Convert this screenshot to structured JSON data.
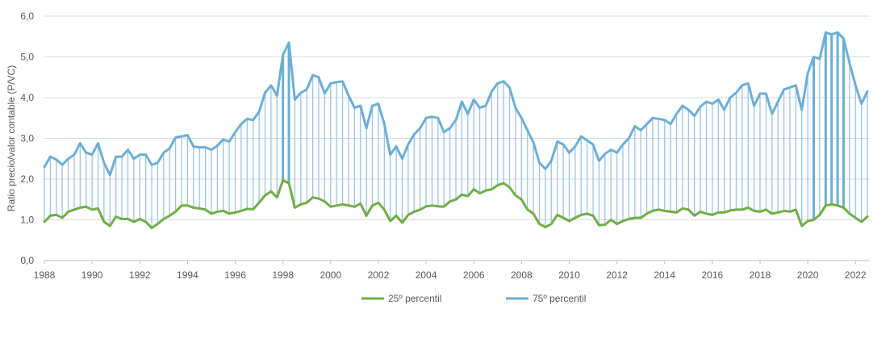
{
  "chart_data": {
    "type": "line",
    "title": "",
    "xlabel": "",
    "ylabel": "Ratio precio/valor contable (P/VC)",
    "xlim": [
      1988,
      2022.6
    ],
    "ylim": [
      0,
      6
    ],
    "y_ticks": [
      "0,0",
      "1,0",
      "2,0",
      "3,0",
      "4,0",
      "5,0",
      "6,0"
    ],
    "x_ticks": [
      "1988",
      "1990",
      "1992",
      "1994",
      "1996",
      "1998",
      "2000",
      "2002",
      "2004",
      "2006",
      "2008",
      "2010",
      "2012",
      "2014",
      "2016",
      "2018",
      "2020",
      "2022"
    ],
    "grid": true,
    "legend_position": "bottom",
    "range_bars": "vertical lines linking both series at each observation",
    "colors": {
      "p25": "#70ad47",
      "p75": "#6baed6",
      "bars": "#9dc3e6",
      "grid": "#d9d9d9",
      "axis": "#bfbfbf",
      "text": "#595959"
    },
    "series": [
      {
        "name": "25º percentil",
        "key": "p25",
        "points": [
          [
            1988.0,
            0.95
          ],
          [
            1988.25,
            1.1
          ],
          [
            1988.5,
            1.12
          ],
          [
            1988.75,
            1.05
          ],
          [
            1989.0,
            1.2
          ],
          [
            1989.25,
            1.25
          ],
          [
            1989.5,
            1.3
          ],
          [
            1989.75,
            1.32
          ],
          [
            1990.0,
            1.25
          ],
          [
            1990.25,
            1.28
          ],
          [
            1990.5,
            0.95
          ],
          [
            1990.75,
            0.85
          ],
          [
            1991.0,
            1.08
          ],
          [
            1991.25,
            1.02
          ],
          [
            1991.5,
            1.02
          ],
          [
            1991.75,
            0.95
          ],
          [
            1992.0,
            1.02
          ],
          [
            1992.25,
            0.95
          ],
          [
            1992.5,
            0.8
          ],
          [
            1992.75,
            0.9
          ],
          [
            1993.0,
            1.02
          ],
          [
            1993.25,
            1.1
          ],
          [
            1993.5,
            1.2
          ],
          [
            1993.75,
            1.35
          ],
          [
            1994.0,
            1.35
          ],
          [
            1994.25,
            1.3
          ],
          [
            1994.5,
            1.28
          ],
          [
            1994.75,
            1.25
          ],
          [
            1995.0,
            1.15
          ],
          [
            1995.25,
            1.2
          ],
          [
            1995.5,
            1.22
          ],
          [
            1995.75,
            1.15
          ],
          [
            1996.0,
            1.18
          ],
          [
            1996.25,
            1.22
          ],
          [
            1996.5,
            1.27
          ],
          [
            1996.75,
            1.26
          ],
          [
            1997.0,
            1.42
          ],
          [
            1997.25,
            1.6
          ],
          [
            1997.5,
            1.7
          ],
          [
            1997.75,
            1.55
          ],
          [
            1998.0,
            1.97
          ],
          [
            1998.25,
            1.9
          ],
          [
            1998.5,
            1.3
          ],
          [
            1998.75,
            1.38
          ],
          [
            1999.0,
            1.42
          ],
          [
            1999.25,
            1.55
          ],
          [
            1999.5,
            1.52
          ],
          [
            1999.75,
            1.45
          ],
          [
            2000.0,
            1.32
          ],
          [
            2000.25,
            1.35
          ],
          [
            2000.5,
            1.38
          ],
          [
            2000.75,
            1.35
          ],
          [
            2001.0,
            1.32
          ],
          [
            2001.25,
            1.4
          ],
          [
            2001.5,
            1.1
          ],
          [
            2001.75,
            1.35
          ],
          [
            2002.0,
            1.42
          ],
          [
            2002.25,
            1.25
          ],
          [
            2002.5,
            0.97
          ],
          [
            2002.75,
            1.1
          ],
          [
            2003.0,
            0.93
          ],
          [
            2003.25,
            1.12
          ],
          [
            2003.5,
            1.2
          ],
          [
            2003.75,
            1.25
          ],
          [
            2004.0,
            1.33
          ],
          [
            2004.25,
            1.35
          ],
          [
            2004.5,
            1.33
          ],
          [
            2004.75,
            1.32
          ],
          [
            2005.0,
            1.45
          ],
          [
            2005.25,
            1.5
          ],
          [
            2005.5,
            1.62
          ],
          [
            2005.75,
            1.58
          ],
          [
            2006.0,
            1.75
          ],
          [
            2006.25,
            1.65
          ],
          [
            2006.5,
            1.72
          ],
          [
            2006.75,
            1.75
          ],
          [
            2007.0,
            1.85
          ],
          [
            2007.25,
            1.9
          ],
          [
            2007.5,
            1.8
          ],
          [
            2007.75,
            1.6
          ],
          [
            2008.0,
            1.5
          ],
          [
            2008.25,
            1.25
          ],
          [
            2008.5,
            1.15
          ],
          [
            2008.75,
            0.9
          ],
          [
            2009.0,
            0.82
          ],
          [
            2009.25,
            0.9
          ],
          [
            2009.5,
            1.12
          ],
          [
            2009.75,
            1.05
          ],
          [
            2010.0,
            0.97
          ],
          [
            2010.25,
            1.05
          ],
          [
            2010.5,
            1.12
          ],
          [
            2010.75,
            1.15
          ],
          [
            2011.0,
            1.1
          ],
          [
            2011.25,
            0.87
          ],
          [
            2011.5,
            0.88
          ],
          [
            2011.75,
            1.0
          ],
          [
            2012.0,
            0.9
          ],
          [
            2012.25,
            0.97
          ],
          [
            2012.5,
            1.02
          ],
          [
            2012.75,
            1.05
          ],
          [
            2013.0,
            1.05
          ],
          [
            2013.25,
            1.15
          ],
          [
            2013.5,
            1.22
          ],
          [
            2013.75,
            1.25
          ],
          [
            2014.0,
            1.22
          ],
          [
            2014.25,
            1.2
          ],
          [
            2014.5,
            1.18
          ],
          [
            2014.75,
            1.28
          ],
          [
            2015.0,
            1.25
          ],
          [
            2015.25,
            1.1
          ],
          [
            2015.5,
            1.2
          ],
          [
            2015.75,
            1.15
          ],
          [
            2016.0,
            1.12
          ],
          [
            2016.25,
            1.18
          ],
          [
            2016.5,
            1.18
          ],
          [
            2016.75,
            1.23
          ],
          [
            2017.0,
            1.25
          ],
          [
            2017.25,
            1.25
          ],
          [
            2017.5,
            1.3
          ],
          [
            2017.75,
            1.22
          ],
          [
            2018.0,
            1.2
          ],
          [
            2018.25,
            1.25
          ],
          [
            2018.5,
            1.15
          ],
          [
            2018.75,
            1.18
          ],
          [
            2019.0,
            1.22
          ],
          [
            2019.25,
            1.2
          ],
          [
            2019.5,
            1.25
          ],
          [
            2019.75,
            0.85
          ],
          [
            2020.0,
            0.97
          ],
          [
            2020.25,
            1.0
          ],
          [
            2020.5,
            1.12
          ],
          [
            2020.75,
            1.35
          ],
          [
            2021.0,
            1.38
          ],
          [
            2021.25,
            1.35
          ],
          [
            2021.5,
            1.3
          ],
          [
            2021.75,
            1.15
          ],
          [
            2022.0,
            1.05
          ],
          [
            2022.25,
            0.95
          ],
          [
            2022.5,
            1.08
          ]
        ]
      },
      {
        "name": "75º percentil",
        "key": "p75",
        "points": [
          [
            1988.0,
            2.3
          ],
          [
            1988.25,
            2.55
          ],
          [
            1988.5,
            2.48
          ],
          [
            1988.75,
            2.35
          ],
          [
            1989.0,
            2.5
          ],
          [
            1989.25,
            2.6
          ],
          [
            1989.5,
            2.88
          ],
          [
            1989.75,
            2.65
          ],
          [
            1990.0,
            2.6
          ],
          [
            1990.25,
            2.88
          ],
          [
            1990.5,
            2.4
          ],
          [
            1990.75,
            2.1
          ],
          [
            1991.0,
            2.55
          ],
          [
            1991.25,
            2.55
          ],
          [
            1991.5,
            2.72
          ],
          [
            1991.75,
            2.5
          ],
          [
            1992.0,
            2.6
          ],
          [
            1992.25,
            2.6
          ],
          [
            1992.5,
            2.35
          ],
          [
            1992.75,
            2.4
          ],
          [
            1993.0,
            2.65
          ],
          [
            1993.25,
            2.75
          ],
          [
            1993.5,
            3.02
          ],
          [
            1993.75,
            3.05
          ],
          [
            1994.0,
            3.08
          ],
          [
            1994.25,
            2.8
          ],
          [
            1994.5,
            2.78
          ],
          [
            1994.75,
            2.78
          ],
          [
            1995.0,
            2.72
          ],
          [
            1995.25,
            2.82
          ],
          [
            1995.5,
            2.97
          ],
          [
            1995.75,
            2.92
          ],
          [
            1996.0,
            3.15
          ],
          [
            1996.25,
            3.35
          ],
          [
            1996.5,
            3.48
          ],
          [
            1996.75,
            3.45
          ],
          [
            1997.0,
            3.65
          ],
          [
            1997.25,
            4.12
          ],
          [
            1997.5,
            4.3
          ],
          [
            1997.75,
            4.05
          ],
          [
            1998.0,
            5.05
          ],
          [
            1998.25,
            5.35
          ],
          [
            1998.5,
            3.95
          ],
          [
            1998.75,
            4.12
          ],
          [
            1999.0,
            4.2
          ],
          [
            1999.25,
            4.55
          ],
          [
            1999.5,
            4.5
          ],
          [
            1999.75,
            4.1
          ],
          [
            2000.0,
            4.35
          ],
          [
            2000.25,
            4.38
          ],
          [
            2000.5,
            4.4
          ],
          [
            2000.75,
            4.05
          ],
          [
            2001.0,
            3.75
          ],
          [
            2001.25,
            3.8
          ],
          [
            2001.5,
            3.25
          ],
          [
            2001.75,
            3.8
          ],
          [
            2002.0,
            3.85
          ],
          [
            2002.25,
            3.35
          ],
          [
            2002.5,
            2.6
          ],
          [
            2002.75,
            2.8
          ],
          [
            2003.0,
            2.5
          ],
          [
            2003.25,
            2.85
          ],
          [
            2003.5,
            3.1
          ],
          [
            2003.75,
            3.25
          ],
          [
            2004.0,
            3.5
          ],
          [
            2004.25,
            3.53
          ],
          [
            2004.5,
            3.5
          ],
          [
            2004.75,
            3.15
          ],
          [
            2005.0,
            3.25
          ],
          [
            2005.25,
            3.45
          ],
          [
            2005.5,
            3.9
          ],
          [
            2005.75,
            3.6
          ],
          [
            2006.0,
            3.95
          ],
          [
            2006.25,
            3.75
          ],
          [
            2006.5,
            3.8
          ],
          [
            2006.75,
            4.15
          ],
          [
            2007.0,
            4.35
          ],
          [
            2007.25,
            4.4
          ],
          [
            2007.5,
            4.25
          ],
          [
            2007.75,
            3.75
          ],
          [
            2008.0,
            3.5
          ],
          [
            2008.25,
            3.2
          ],
          [
            2008.5,
            2.9
          ],
          [
            2008.75,
            2.4
          ],
          [
            2009.0,
            2.25
          ],
          [
            2009.25,
            2.45
          ],
          [
            2009.5,
            2.92
          ],
          [
            2009.75,
            2.85
          ],
          [
            2010.0,
            2.65
          ],
          [
            2010.25,
            2.8
          ],
          [
            2010.5,
            3.05
          ],
          [
            2010.75,
            2.95
          ],
          [
            2011.0,
            2.85
          ],
          [
            2011.25,
            2.45
          ],
          [
            2011.5,
            2.62
          ],
          [
            2011.75,
            2.72
          ],
          [
            2012.0,
            2.65
          ],
          [
            2012.25,
            2.85
          ],
          [
            2012.5,
            3.0
          ],
          [
            2012.75,
            3.3
          ],
          [
            2013.0,
            3.2
          ],
          [
            2013.25,
            3.35
          ],
          [
            2013.5,
            3.5
          ],
          [
            2013.75,
            3.48
          ],
          [
            2014.0,
            3.45
          ],
          [
            2014.25,
            3.35
          ],
          [
            2014.5,
            3.6
          ],
          [
            2014.75,
            3.8
          ],
          [
            2015.0,
            3.7
          ],
          [
            2015.25,
            3.55
          ],
          [
            2015.5,
            3.78
          ],
          [
            2015.75,
            3.9
          ],
          [
            2016.0,
            3.85
          ],
          [
            2016.25,
            3.95
          ],
          [
            2016.5,
            3.7
          ],
          [
            2016.75,
            4.0
          ],
          [
            2017.0,
            4.12
          ],
          [
            2017.25,
            4.3
          ],
          [
            2017.5,
            4.35
          ],
          [
            2017.75,
            3.8
          ],
          [
            2018.0,
            4.1
          ],
          [
            2018.25,
            4.1
          ],
          [
            2018.5,
            3.6
          ],
          [
            2018.75,
            3.9
          ],
          [
            2019.0,
            4.2
          ],
          [
            2019.25,
            4.25
          ],
          [
            2019.5,
            4.3
          ],
          [
            2019.75,
            3.7
          ],
          [
            2020.0,
            4.6
          ],
          [
            2020.25,
            5.0
          ],
          [
            2020.5,
            4.95
          ],
          [
            2020.75,
            5.6
          ],
          [
            2021.0,
            5.55
          ],
          [
            2021.25,
            5.6
          ],
          [
            2021.5,
            5.45
          ],
          [
            2021.75,
            4.85
          ],
          [
            2022.0,
            4.3
          ],
          [
            2022.25,
            3.85
          ],
          [
            2022.5,
            4.15
          ]
        ]
      }
    ]
  }
}
